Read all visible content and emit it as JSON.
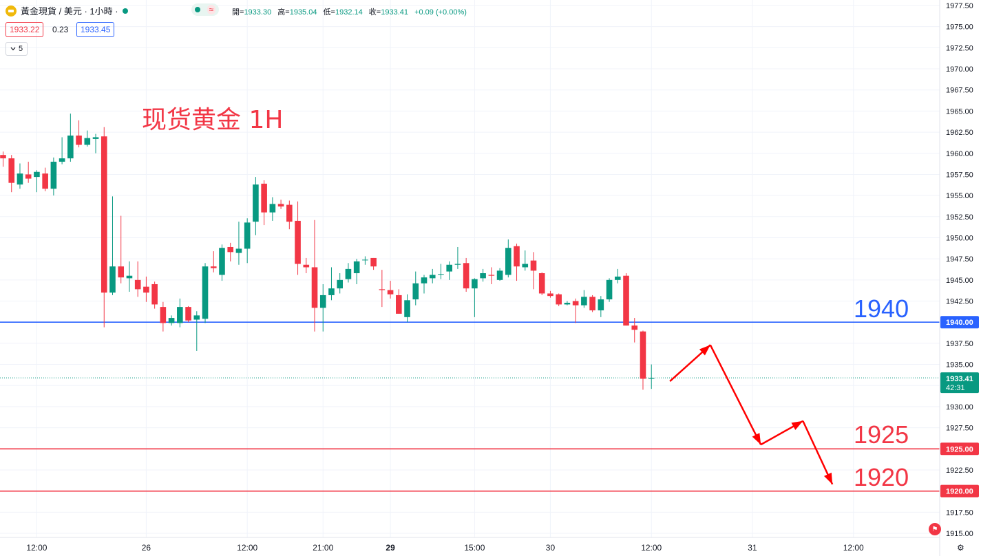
{
  "header": {
    "title": "黃金現貨 / 美元 · 1小時 ·",
    "ohlc": [
      {
        "label": "開=",
        "value": "1933.30"
      },
      {
        "label": "高=",
        "value": "1935.04"
      },
      {
        "label": "低=",
        "value": "1932.14"
      },
      {
        "label": "收=",
        "value": "1933.41"
      },
      {
        "label": "",
        "value": "+0.09 (+0.00%)"
      }
    ],
    "wave_icon": "≈",
    "bid": "1933.22",
    "spread": "0.23",
    "ask": "1933.45",
    "indicator_value": "5",
    "indicator_icon": "chevron-down-icon"
  },
  "annotations": {
    "title": "现货黄金 1H",
    "level_1940": "1940",
    "level_1925": "1925",
    "level_1920": "1920"
  },
  "chart_data": {
    "type": "candlestick",
    "title": "现货黄金 1H",
    "ylim": [
      1915,
      1977.5
    ],
    "yticks": [
      "1977.50",
      "1975.00",
      "1972.50",
      "1970.00",
      "1967.50",
      "1965.00",
      "1962.50",
      "1960.00",
      "1957.50",
      "1955.00",
      "1952.50",
      "1950.00",
      "1947.50",
      "1945.00",
      "1942.50",
      "1940.00",
      "1937.50",
      "1935.00",
      "1932.50",
      "1930.00",
      "1927.50",
      "1925.00",
      "1922.50",
      "1920.00",
      "1917.50",
      "1915.00"
    ],
    "xticks": [
      {
        "label": "12:00",
        "index": 4
      },
      {
        "label": "26",
        "index": 17
      },
      {
        "label": "12:00",
        "index": 29
      },
      {
        "label": "21:00",
        "index": 38
      },
      {
        "label": "29",
        "index": 46
      },
      {
        "label": "15:00",
        "index": 56
      },
      {
        "label": "30",
        "index": 65
      },
      {
        "label": "12:00",
        "index": 77
      },
      {
        "label": "31",
        "index": 89
      },
      {
        "label": "12:00",
        "index": 101
      }
    ],
    "candles": [
      {
        "o": 1959.8,
        "h": 1960.2,
        "l": 1958.4,
        "c": 1959.4
      },
      {
        "o": 1959.4,
        "h": 1959.8,
        "l": 1955.4,
        "c": 1956.5
      },
      {
        "o": 1956.3,
        "h": 1958.8,
        "l": 1955.8,
        "c": 1957.6
      },
      {
        "o": 1957.5,
        "h": 1959.0,
        "l": 1956.5,
        "c": 1957.0
      },
      {
        "o": 1957.2,
        "h": 1958.0,
        "l": 1955.4,
        "c": 1957.8
      },
      {
        "o": 1957.6,
        "h": 1958.3,
        "l": 1955.5,
        "c": 1955.8
      },
      {
        "o": 1955.8,
        "h": 1959.5,
        "l": 1955.0,
        "c": 1959.0
      },
      {
        "o": 1959.0,
        "h": 1961.9,
        "l": 1958.7,
        "c": 1959.4
      },
      {
        "o": 1959.4,
        "h": 1964.7,
        "l": 1959.0,
        "c": 1962.1
      },
      {
        "o": 1962.1,
        "h": 1963.9,
        "l": 1960.7,
        "c": 1961.0
      },
      {
        "o": 1961.0,
        "h": 1962.7,
        "l": 1960.8,
        "c": 1961.8
      },
      {
        "o": 1961.7,
        "h": 1962.3,
        "l": 1960.0,
        "c": 1961.9
      },
      {
        "o": 1962.0,
        "h": 1963.1,
        "l": 1939.4,
        "c": 1943.5
      },
      {
        "o": 1943.5,
        "h": 1954.9,
        "l": 1943.2,
        "c": 1946.6
      },
      {
        "o": 1946.6,
        "h": 1952.6,
        "l": 1944.6,
        "c": 1945.3
      },
      {
        "o": 1945.2,
        "h": 1947.2,
        "l": 1943.6,
        "c": 1945.5
      },
      {
        "o": 1945.0,
        "h": 1947.2,
        "l": 1943.0,
        "c": 1943.9
      },
      {
        "o": 1944.2,
        "h": 1945.4,
        "l": 1942.4,
        "c": 1943.5
      },
      {
        "o": 1944.5,
        "h": 1944.8,
        "l": 1941.6,
        "c": 1942.1
      },
      {
        "o": 1941.8,
        "h": 1942.4,
        "l": 1938.9,
        "c": 1939.9
      },
      {
        "o": 1939.9,
        "h": 1940.8,
        "l": 1939.6,
        "c": 1940.5
      },
      {
        "o": 1939.9,
        "h": 1942.8,
        "l": 1939.4,
        "c": 1941.8
      },
      {
        "o": 1941.8,
        "h": 1941.9,
        "l": 1940.0,
        "c": 1940.2
      },
      {
        "o": 1940.3,
        "h": 1941.3,
        "l": 1936.6,
        "c": 1940.8
      },
      {
        "o": 1940.4,
        "h": 1947.0,
        "l": 1939.9,
        "c": 1946.6
      },
      {
        "o": 1946.6,
        "h": 1948.4,
        "l": 1945.9,
        "c": 1946.4
      },
      {
        "o": 1945.6,
        "h": 1949.2,
        "l": 1944.9,
        "c": 1948.8
      },
      {
        "o": 1948.9,
        "h": 1949.4,
        "l": 1947.2,
        "c": 1948.3
      },
      {
        "o": 1948.2,
        "h": 1951.9,
        "l": 1946.8,
        "c": 1948.7
      },
      {
        "o": 1948.7,
        "h": 1952.3,
        "l": 1947.0,
        "c": 1951.8
      },
      {
        "o": 1951.9,
        "h": 1957.2,
        "l": 1950.3,
        "c": 1956.3
      },
      {
        "o": 1956.4,
        "h": 1956.8,
        "l": 1951.5,
        "c": 1953.0
      },
      {
        "o": 1953.0,
        "h": 1954.8,
        "l": 1952.0,
        "c": 1954.0
      },
      {
        "o": 1954.0,
        "h": 1954.5,
        "l": 1953.4,
        "c": 1953.7
      },
      {
        "o": 1953.9,
        "h": 1954.4,
        "l": 1951.0,
        "c": 1951.9
      },
      {
        "o": 1952.0,
        "h": 1954.3,
        "l": 1945.6,
        "c": 1946.9
      },
      {
        "o": 1946.8,
        "h": 1947.6,
        "l": 1945.8,
        "c": 1946.5
      },
      {
        "o": 1946.5,
        "h": 1952.1,
        "l": 1938.9,
        "c": 1941.7
      },
      {
        "o": 1941.7,
        "h": 1944.5,
        "l": 1938.9,
        "c": 1943.2
      },
      {
        "o": 1943.2,
        "h": 1946.5,
        "l": 1942.6,
        "c": 1944.0
      },
      {
        "o": 1944.0,
        "h": 1945.8,
        "l": 1943.4,
        "c": 1945.0
      },
      {
        "o": 1945.1,
        "h": 1947.0,
        "l": 1944.7,
        "c": 1946.3
      },
      {
        "o": 1945.8,
        "h": 1947.5,
        "l": 1944.5,
        "c": 1947.2
      },
      {
        "o": 1947.4,
        "h": 1947.8,
        "l": 1946.8,
        "c": 1947.4
      },
      {
        "o": 1947.6,
        "h": 1947.6,
        "l": 1946.2,
        "c": 1946.6
      },
      {
        "o": 1943.9,
        "h": 1946.2,
        "l": 1941.8,
        "c": 1943.8
      },
      {
        "o": 1943.8,
        "h": 1944.9,
        "l": 1942.8,
        "c": 1943.3
      },
      {
        "o": 1943.2,
        "h": 1943.9,
        "l": 1941.0,
        "c": 1941.0
      },
      {
        "o": 1940.6,
        "h": 1943.3,
        "l": 1940.0,
        "c": 1942.6
      },
      {
        "o": 1942.7,
        "h": 1946.0,
        "l": 1942.0,
        "c": 1944.6
      },
      {
        "o": 1944.6,
        "h": 1945.6,
        "l": 1943.4,
        "c": 1945.3
      },
      {
        "o": 1945.2,
        "h": 1946.3,
        "l": 1944.6,
        "c": 1945.6
      },
      {
        "o": 1945.7,
        "h": 1946.9,
        "l": 1945.1,
        "c": 1945.7
      },
      {
        "o": 1946.0,
        "h": 1947.2,
        "l": 1945.0,
        "c": 1946.8
      },
      {
        "o": 1946.8,
        "h": 1948.9,
        "l": 1946.3,
        "c": 1946.9
      },
      {
        "o": 1947.0,
        "h": 1947.6,
        "l": 1943.6,
        "c": 1944.0
      },
      {
        "o": 1944.0,
        "h": 1945.2,
        "l": 1940.6,
        "c": 1945.1
      },
      {
        "o": 1945.2,
        "h": 1946.3,
        "l": 1944.8,
        "c": 1945.8
      },
      {
        "o": 1945.6,
        "h": 1946.5,
        "l": 1944.5,
        "c": 1945.5
      },
      {
        "o": 1945.0,
        "h": 1946.4,
        "l": 1944.9,
        "c": 1946.1
      },
      {
        "o": 1945.6,
        "h": 1949.8,
        "l": 1945.3,
        "c": 1948.8
      },
      {
        "o": 1949.0,
        "h": 1949.3,
        "l": 1944.9,
        "c": 1946.6
      },
      {
        "o": 1946.5,
        "h": 1948.5,
        "l": 1946.1,
        "c": 1946.9
      },
      {
        "o": 1947.3,
        "h": 1948.3,
        "l": 1943.9,
        "c": 1946.1
      },
      {
        "o": 1945.8,
        "h": 1945.9,
        "l": 1943.2,
        "c": 1943.4
      },
      {
        "o": 1943.4,
        "h": 1943.7,
        "l": 1942.9,
        "c": 1943.1
      },
      {
        "o": 1943.3,
        "h": 1943.4,
        "l": 1941.9,
        "c": 1942.1
      },
      {
        "o": 1942.1,
        "h": 1942.5,
        "l": 1942.0,
        "c": 1942.3
      },
      {
        "o": 1942.5,
        "h": 1942.8,
        "l": 1939.9,
        "c": 1942.0
      },
      {
        "o": 1942.0,
        "h": 1943.8,
        "l": 1941.7,
        "c": 1943.0
      },
      {
        "o": 1943.0,
        "h": 1943.2,
        "l": 1941.2,
        "c": 1941.4
      },
      {
        "o": 1941.4,
        "h": 1943.1,
        "l": 1940.6,
        "c": 1942.7
      },
      {
        "o": 1942.7,
        "h": 1945.2,
        "l": 1942.4,
        "c": 1945.0
      },
      {
        "o": 1945.0,
        "h": 1946.3,
        "l": 1944.6,
        "c": 1945.4
      },
      {
        "o": 1945.5,
        "h": 1945.8,
        "l": 1939.6,
        "c": 1939.6
      },
      {
        "o": 1939.6,
        "h": 1940.5,
        "l": 1937.6,
        "c": 1939.1
      },
      {
        "o": 1938.9,
        "h": 1939.0,
        "l": 1932.0,
        "c": 1933.3
      },
      {
        "o": 1933.3,
        "h": 1935.0,
        "l": 1932.1,
        "c": 1933.4
      }
    ],
    "horizontal_lines": [
      {
        "value": 1940.0,
        "label": "1940.00",
        "color": "#2962ff"
      },
      {
        "value": 1925.0,
        "label": "1925.00",
        "color": "#f23645"
      },
      {
        "value": 1920.0,
        "label": "1920.00",
        "color": "#f23645"
      }
    ],
    "current_price": {
      "value": 1933.41,
      "label": "1933.41",
      "countdown": "42:31",
      "color": "#089981"
    },
    "forecast_path": [
      {
        "index": 79.2,
        "value": 1933.0
      },
      {
        "index": 84.0,
        "value": 1937.3
      },
      {
        "index": 90.0,
        "value": 1925.5
      },
      {
        "index": 95.0,
        "value": 1928.3
      },
      {
        "index": 98.5,
        "value": 1920.8
      }
    ],
    "colors": {
      "up": "#089981",
      "down": "#f23645",
      "forecast": "#ff0000",
      "grid": "#f0f3fa",
      "axis_text": "#131722"
    }
  }
}
